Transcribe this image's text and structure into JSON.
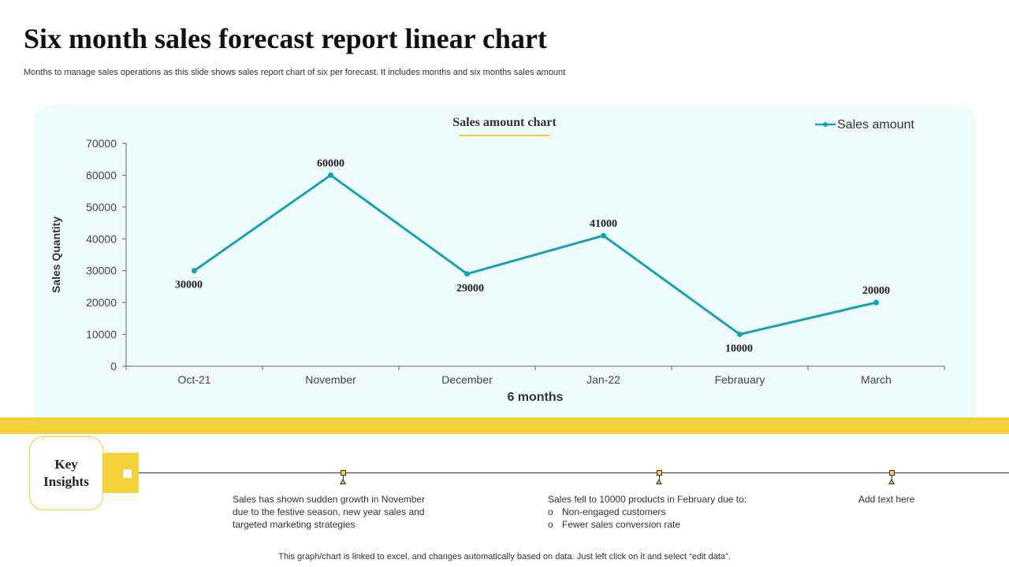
{
  "header": {
    "title": "Six month sales forecast report linear chart",
    "subtitle": "Months to manage sales operations as this slide shows sales report chart of six per forecast. It includes months and six months sales amount"
  },
  "colors": {
    "line": "#17a2b0",
    "accent_yellow": "#f4d03a",
    "panel_bg": "#f0fbfd"
  },
  "chart_data": {
    "type": "line",
    "title": "Sales amount chart",
    "xlabel": "6 months",
    "ylabel": "Sales Quantity",
    "categories": [
      "Oct-21",
      "November",
      "December",
      "Jan-22",
      "Febrauary",
      "March"
    ],
    "series": [
      {
        "name": "Sales amount",
        "values": [
          30000,
          60000,
          29000,
          41000,
          10000,
          20000
        ]
      }
    ],
    "data_labels": [
      "30000",
      "60000",
      "29000",
      "41000",
      "10000",
      "20000"
    ],
    "ylim": [
      0,
      70000
    ],
    "yticks": [
      "0",
      "10000",
      "20000",
      "30000",
      "40000",
      "50000",
      "60000",
      "70000"
    ],
    "legend": "top-right",
    "grid": false
  },
  "insights": {
    "heading": "Key Insights",
    "items": [
      {
        "lines": [
          "Sales has shown  sudden growth in November",
          "due to the festive  season, new year sales and",
          "targeted marketing strategies"
        ]
      },
      {
        "intro": "Sales fell to 10000 products in February due to:",
        "bullets": [
          "Non-engaged  customers",
          "Fewer  sales conversion  rate"
        ],
        "bullet_glyph": "o"
      },
      {
        "lines": [
          "Add text here"
        ]
      }
    ]
  },
  "footer": {
    "note": "This graph/chart is linked to excel,  and changes automatically based on data. Just left click on it and select “edit data”."
  }
}
